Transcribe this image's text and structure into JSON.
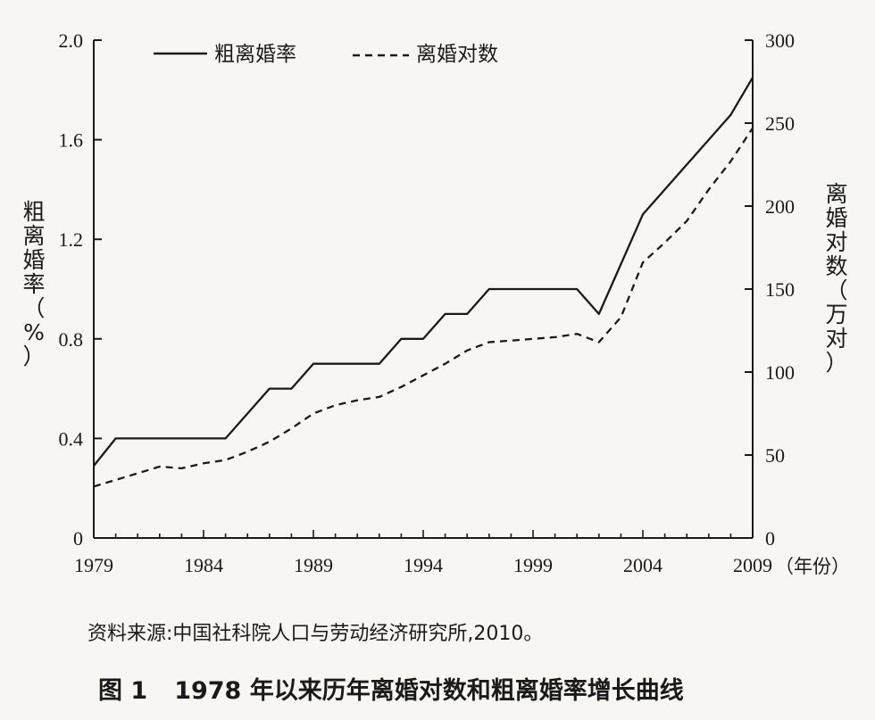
{
  "chart_data": {
    "type": "line",
    "title": "1978 年以来历年离婚对数和粗离婚率增长曲线",
    "figure_number": "图 1",
    "source": "资料来源:中国社科院人口与劳动经济研究所,2010。",
    "x_unit_label": "（年份）",
    "x": [
      1979,
      1980,
      1981,
      1982,
      1983,
      1984,
      1985,
      1986,
      1987,
      1988,
      1989,
      1990,
      1991,
      1992,
      1993,
      1994,
      1995,
      1996,
      1997,
      1998,
      1999,
      2000,
      2001,
      2002,
      2003,
      2004,
      2005,
      2006,
      2007,
      2008,
      2009
    ],
    "x_ticks": [
      "1979",
      "1984",
      "1989",
      "1994",
      "1999",
      "2004",
      "2009"
    ],
    "x_range": [
      1979,
      2009
    ],
    "y_left": {
      "label": [
        "粗",
        "离",
        "婚",
        "率",
        "（",
        "%",
        "）"
      ],
      "range": [
        0,
        2.0
      ],
      "ticks": [
        "0",
        "0.4",
        "0.8",
        "1.2",
        "1.6",
        "2.0"
      ]
    },
    "y_right": {
      "label": [
        "离",
        "婚",
        "对",
        "数",
        "（",
        "万",
        "对",
        "）"
      ],
      "range": [
        0,
        300
      ],
      "ticks": [
        "0",
        "50",
        "100",
        "150",
        "200",
        "250",
        "300"
      ]
    },
    "series": [
      {
        "name": "粗离婚率",
        "axis": "left",
        "style": "solid",
        "values": [
          0.29,
          0.4,
          0.4,
          0.4,
          0.4,
          0.4,
          0.4,
          0.5,
          0.6,
          0.6,
          0.7,
          0.7,
          0.7,
          0.7,
          0.8,
          0.8,
          0.9,
          0.9,
          1.0,
          1.0,
          1.0,
          1.0,
          1.0,
          0.9,
          1.1,
          1.3,
          1.4,
          1.5,
          1.6,
          1.7,
          1.85
        ]
      },
      {
        "name": "离婚对数",
        "axis": "right",
        "style": "dashed",
        "values": [
          31,
          35,
          39,
          43,
          42,
          45,
          47,
          52,
          58,
          66,
          75,
          80,
          83,
          85,
          91,
          98,
          105,
          113,
          118,
          119,
          120,
          121,
          123,
          118,
          133,
          166,
          178,
          191,
          210,
          227,
          247
        ]
      }
    ],
    "grid": false,
    "legend_position": "top"
  }
}
